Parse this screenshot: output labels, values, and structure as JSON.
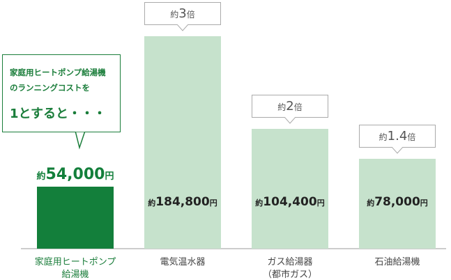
{
  "chart_data": {
    "type": "bar",
    "categories": [
      "家庭用ヒートポンプ\n給湯機",
      "電気温水器",
      "ガス給湯器\n（都市ガス）",
      "石油給湯機"
    ],
    "values": [
      54000,
      184800,
      104400,
      78000
    ],
    "value_labels": [
      "約54,000円",
      "約184,800円",
      "約104,400円",
      "約78,000円"
    ],
    "ratio_labels": [
      null,
      "約3倍",
      "約2倍",
      "約1.4倍"
    ],
    "colors": [
      "#137f3b",
      "#c6e2cc",
      "#c6e2cc",
      "#c6e2cc"
    ],
    "annotation": {
      "text": "家庭用ヒートポンプ給湯機\nのランニングコストを",
      "emphasis": "1とすると・・・"
    }
  }
}
